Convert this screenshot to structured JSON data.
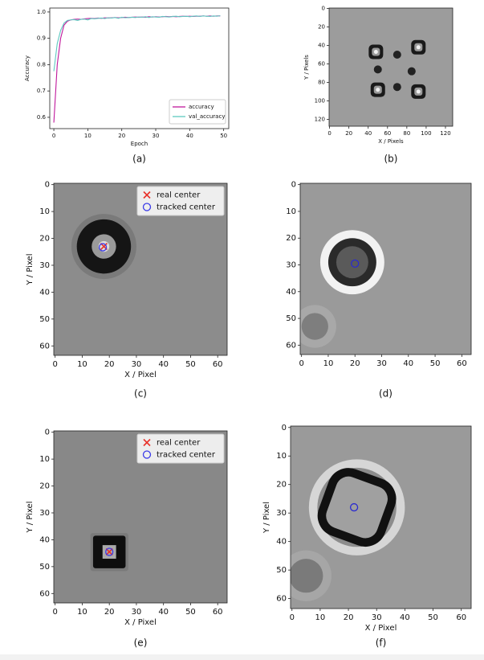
{
  "chart_data": [
    {
      "type": "line",
      "caption": "(a)",
      "xlabel": "Epoch",
      "ylabel": "Accuracy",
      "x": [
        0,
        1,
        2,
        3,
        4,
        5,
        6,
        7,
        8,
        9,
        10,
        11,
        12,
        13,
        14,
        15,
        16,
        17,
        18,
        19,
        20,
        21,
        22,
        23,
        24,
        25,
        26,
        27,
        28,
        29,
        30,
        31,
        32,
        33,
        34,
        35,
        36,
        37,
        38,
        39,
        40,
        41,
        42,
        43,
        44,
        45,
        46,
        47,
        48,
        49
      ],
      "series": [
        {
          "name": "accuracy",
          "color": "#c0189c",
          "values": [
            0.58,
            0.8,
            0.9,
            0.95,
            0.965,
            0.97,
            0.972,
            0.973,
            0.972,
            0.974,
            0.975,
            0.976,
            0.975,
            0.977,
            0.976,
            0.978,
            0.977,
            0.978,
            0.979,
            0.978,
            0.979,
            0.98,
            0.979,
            0.98,
            0.981,
            0.98,
            0.981,
            0.98,
            0.982,
            0.981,
            0.982,
            0.981,
            0.982,
            0.983,
            0.982,
            0.983,
            0.982,
            0.983,
            0.984,
            0.983,
            0.984,
            0.983,
            0.984,
            0.984,
            0.985,
            0.984,
            0.985,
            0.984,
            0.985,
            0.985
          ]
        },
        {
          "name": "val_accuracy",
          "color": "#5ec8c0",
          "values": [
            0.775,
            0.88,
            0.93,
            0.958,
            0.968,
            0.97,
            0.971,
            0.968,
            0.972,
            0.973,
            0.97,
            0.975,
            0.974,
            0.976,
            0.977,
            0.975,
            0.978,
            0.977,
            0.979,
            0.976,
            0.98,
            0.978,
            0.979,
            0.98,
            0.979,
            0.981,
            0.98,
            0.982,
            0.979,
            0.982,
            0.981,
            0.98,
            0.983,
            0.982,
            0.981,
            0.983,
            0.984,
            0.982,
            0.983,
            0.984,
            0.982,
            0.984,
            0.985,
            0.983,
            0.985,
            0.984,
            0.983,
            0.985,
            0.984,
            0.986
          ]
        }
      ],
      "xlim": [
        -1.2,
        51.5
      ],
      "xticks": [
        0,
        10,
        20,
        30,
        40,
        50
      ],
      "ylim": [
        0.557,
        1.015
      ],
      "yticks": [
        0.6,
        0.7,
        0.8,
        0.9,
        {
          "value": 1,
          "label": "1.0"
        }
      ],
      "legend": "lower right"
    },
    {
      "type": "image",
      "caption": "(b)",
      "xlabel": "X / Pixels",
      "ylabel": "Y / Pixels",
      "xlim": [
        -0.5,
        127.5
      ],
      "xticks": [
        0,
        20,
        40,
        60,
        80,
        100,
        120
      ],
      "ylim": [
        127.5,
        -0.5
      ],
      "yticks": [
        0,
        20,
        40,
        60,
        80,
        100,
        120
      ],
      "series": []
    },
    {
      "type": "image",
      "caption": "(c)",
      "xlabel": "X / Pixel",
      "ylabel": "Y / Pixel",
      "xlim": [
        -0.5,
        63.5
      ],
      "xticks": [
        0,
        10,
        20,
        30,
        40,
        50,
        60
      ],
      "ylim": [
        63.5,
        -0.5
      ],
      "yticks": [
        0,
        10,
        20,
        30,
        40,
        50,
        60
      ],
      "series": [
        {
          "name": "real center",
          "marker": "x",
          "color": "#e8322a",
          "x": [
            18
          ],
          "y": [
            23
          ]
        },
        {
          "name": "tracked center",
          "marker": "o",
          "color": "#3a3ae8",
          "x": [
            17.6
          ],
          "y": [
            23.3
          ]
        }
      ],
      "legend": "upper right"
    },
    {
      "type": "image",
      "caption": "(d)",
      "xlim": [
        -0.5,
        63.5
      ],
      "xticks": [
        0,
        10,
        20,
        30,
        40,
        50,
        60
      ],
      "ylim": [
        63.5,
        -0.5
      ],
      "yticks": [
        0,
        10,
        20,
        30,
        40,
        50,
        60
      ],
      "series": [
        {
          "marker": "o",
          "color": "#2a2ad0",
          "x": [
            20
          ],
          "y": [
            29.5
          ]
        }
      ]
    },
    {
      "type": "image",
      "caption": "(e)",
      "xlabel": "X / Pixel",
      "ylabel": "Y / Pixel",
      "xlim": [
        -0.5,
        63.5
      ],
      "xticks": [
        0,
        10,
        20,
        30,
        40,
        50,
        60
      ],
      "ylim": [
        63.5,
        -0.5
      ],
      "yticks": [
        0,
        10,
        20,
        30,
        40,
        50,
        60
      ],
      "series": [
        {
          "name": "real center",
          "marker": "x",
          "color": "#e8322a",
          "x": [
            20
          ],
          "y": [
            44.5
          ]
        },
        {
          "name": "tracked center",
          "marker": "o",
          "color": "#3a3ae8",
          "x": [
            20
          ],
          "y": [
            44.5
          ]
        }
      ],
      "legend": "upper right"
    },
    {
      "type": "image",
      "caption": "(f)",
      "xlabel": "X / Pixel",
      "ylabel": "Y / Pixel",
      "xlim": [
        -0.5,
        63.5
      ],
      "xticks": [
        0,
        10,
        20,
        30,
        40,
        50,
        60
      ],
      "ylim": [
        63.5,
        -0.5
      ],
      "yticks": [
        0,
        10,
        20,
        30,
        40,
        50,
        60
      ],
      "series": [
        {
          "marker": "o",
          "color": "#2a2ad0",
          "x": [
            22
          ],
          "y": [
            28
          ]
        }
      ]
    }
  ]
}
